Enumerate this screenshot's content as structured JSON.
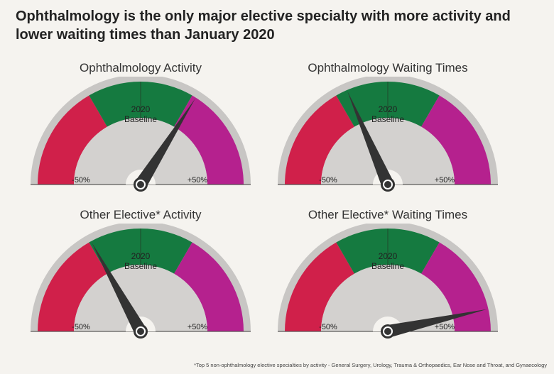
{
  "page": {
    "headline": "Ophthalmology is the only major elective specialty with more activity and lower waiting times than January 2020",
    "footnote": "*Top 5 non-ophthalmology elective specialties by activity - General Surgery, Urology, Trauma & Orthopaedics, Ear Nose and Throat, and Gynaecology"
  },
  "colors": {
    "low": "#d0204a",
    "baseline": "#157a40",
    "high": "#b5218e",
    "dial_face": "#d3d1cf",
    "outer_rim": "#c8c6c4",
    "needle": "#333333",
    "background": "#f5f3ef"
  },
  "chart_data": [
    {
      "type": "gauge",
      "title": "Ophthalmology Activity",
      "center_label_line1": "2020",
      "center_label_line2": "Baseline",
      "min_label": "-50%",
      "max_label": "+50%",
      "range": [
        -50,
        50
      ],
      "value": 18,
      "bands": [
        {
          "label": "",
          "from": -50,
          "to": -16.7,
          "color": "low"
        },
        {
          "label": "",
          "from": -16.7,
          "to": 16.7,
          "color": "baseline"
        },
        {
          "label": "",
          "from": 16.7,
          "to": 50,
          "color": "high"
        }
      ]
    },
    {
      "type": "gauge",
      "title": "Ophthalmology Waiting Times",
      "center_label_line1": "2020",
      "center_label_line2": "Baseline",
      "min_label": "-50%",
      "max_label": "+50%",
      "range": [
        -50,
        50
      ],
      "value": -13,
      "bands": [
        {
          "label": "",
          "from": -50,
          "to": -16.7,
          "color": "low"
        },
        {
          "label": "",
          "from": -16.7,
          "to": 16.7,
          "color": "baseline"
        },
        {
          "label": "",
          "from": 16.7,
          "to": 50,
          "color": "high"
        }
      ]
    },
    {
      "type": "gauge",
      "title": "Other Elective* Activity",
      "center_label_line1": "2020",
      "center_label_line2": "Baseline",
      "min_label": "-50%",
      "max_label": "+50%",
      "range": [
        -50,
        50
      ],
      "value": -16,
      "bands": [
        {
          "label": "",
          "from": -50,
          "to": -16.7,
          "color": "low"
        },
        {
          "label": "",
          "from": -16.7,
          "to": 16.7,
          "color": "baseline"
        },
        {
          "label": "",
          "from": 16.7,
          "to": 50,
          "color": "high"
        }
      ]
    },
    {
      "type": "gauge",
      "title": "Other Elective* Waiting Times",
      "center_label_line1": "2020",
      "center_label_line2": "Baseline",
      "min_label": "-50%",
      "max_label": "+50%",
      "range": [
        -50,
        50
      ],
      "value": 43,
      "bands": [
        {
          "label": "",
          "from": -50,
          "to": -16.7,
          "color": "low"
        },
        {
          "label": "",
          "from": -16.7,
          "to": 16.7,
          "color": "baseline"
        },
        {
          "label": "",
          "from": 16.7,
          "to": 50,
          "color": "high"
        }
      ]
    }
  ]
}
